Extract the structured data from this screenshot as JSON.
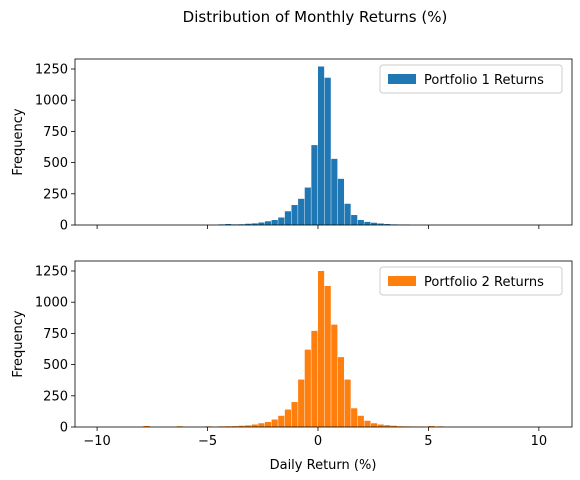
{
  "chart_data": {
    "type": "bar",
    "suptitle": "Distribution of Monthly Returns (%)",
    "xlabel": "Daily Return (%)",
    "xlim": [
      -11,
      11.5
    ],
    "xticks": [
      -10,
      -5,
      0,
      5,
      10
    ],
    "xtick_labels": [
      "−10",
      "−5",
      "0",
      "5",
      "10"
    ],
    "bin_width": 0.28,
    "panels": [
      {
        "ylabel": "Frequency",
        "ylim": [
          0,
          1330
        ],
        "yticks": [
          0,
          250,
          500,
          750,
          1000,
          1250
        ],
        "legend_position": "top-right",
        "series": [
          {
            "name": "Portfolio 1 Returns",
            "color": "#1f77b4",
            "bins": [
              [
                -4.5,
                5
              ],
              [
                -4.2,
                8
              ],
              [
                -3.9,
                5
              ],
              [
                -3.6,
                6
              ],
              [
                -3.3,
                10
              ],
              [
                -3.0,
                13
              ],
              [
                -2.7,
                20
              ],
              [
                -2.4,
                30
              ],
              [
                -2.1,
                40
              ],
              [
                -1.8,
                60
              ],
              [
                -1.5,
                110
              ],
              [
                -1.2,
                160
              ],
              [
                -0.9,
                210
              ],
              [
                -0.6,
                300
              ],
              [
                -0.3,
                640
              ],
              [
                0.0,
                1270
              ],
              [
                0.3,
                1180
              ],
              [
                0.6,
                530
              ],
              [
                0.9,
                370
              ],
              [
                1.2,
                170
              ],
              [
                1.5,
                80
              ],
              [
                1.8,
                40
              ],
              [
                2.1,
                25
              ],
              [
                2.4,
                18
              ],
              [
                2.7,
                12
              ],
              [
                3.0,
                8
              ],
              [
                3.3,
                5
              ],
              [
                3.6,
                4
              ],
              [
                3.9,
                3
              ]
            ]
          }
        ]
      },
      {
        "ylabel": "Frequency",
        "ylim": [
          0,
          1330
        ],
        "yticks": [
          0,
          250,
          500,
          750,
          1000,
          1250
        ],
        "legend_position": "top-right",
        "series": [
          {
            "name": "Portfolio 2 Returns",
            "color": "#ff7f0e",
            "bins": [
              [
                -7.9,
                8
              ],
              [
                -6.4,
                6
              ],
              [
                -5.1,
                5
              ],
              [
                -4.5,
                5
              ],
              [
                -4.2,
                6
              ],
              [
                -3.9,
                7
              ],
              [
                -3.6,
                10
              ],
              [
                -3.3,
                13
              ],
              [
                -3.0,
                20
              ],
              [
                -2.7,
                30
              ],
              [
                -2.4,
                40
              ],
              [
                -2.1,
                60
              ],
              [
                -1.8,
                90
              ],
              [
                -1.5,
                140
              ],
              [
                -1.2,
                200
              ],
              [
                -0.9,
                380
              ],
              [
                -0.6,
                620
              ],
              [
                -0.3,
                770
              ],
              [
                0.0,
                1250
              ],
              [
                0.3,
                1130
              ],
              [
                0.6,
                820
              ],
              [
                0.9,
                560
              ],
              [
                1.2,
                380
              ],
              [
                1.5,
                150
              ],
              [
                1.8,
                90
              ],
              [
                2.1,
                50
              ],
              [
                2.4,
                30
              ],
              [
                2.7,
                20
              ],
              [
                3.0,
                15
              ],
              [
                3.3,
                10
              ],
              [
                3.6,
                6
              ],
              [
                3.9,
                5
              ],
              [
                4.2,
                4
              ],
              [
                4.5,
                3
              ],
              [
                5.0,
                8
              ],
              [
                5.4,
                5
              ]
            ]
          }
        ]
      }
    ]
  }
}
